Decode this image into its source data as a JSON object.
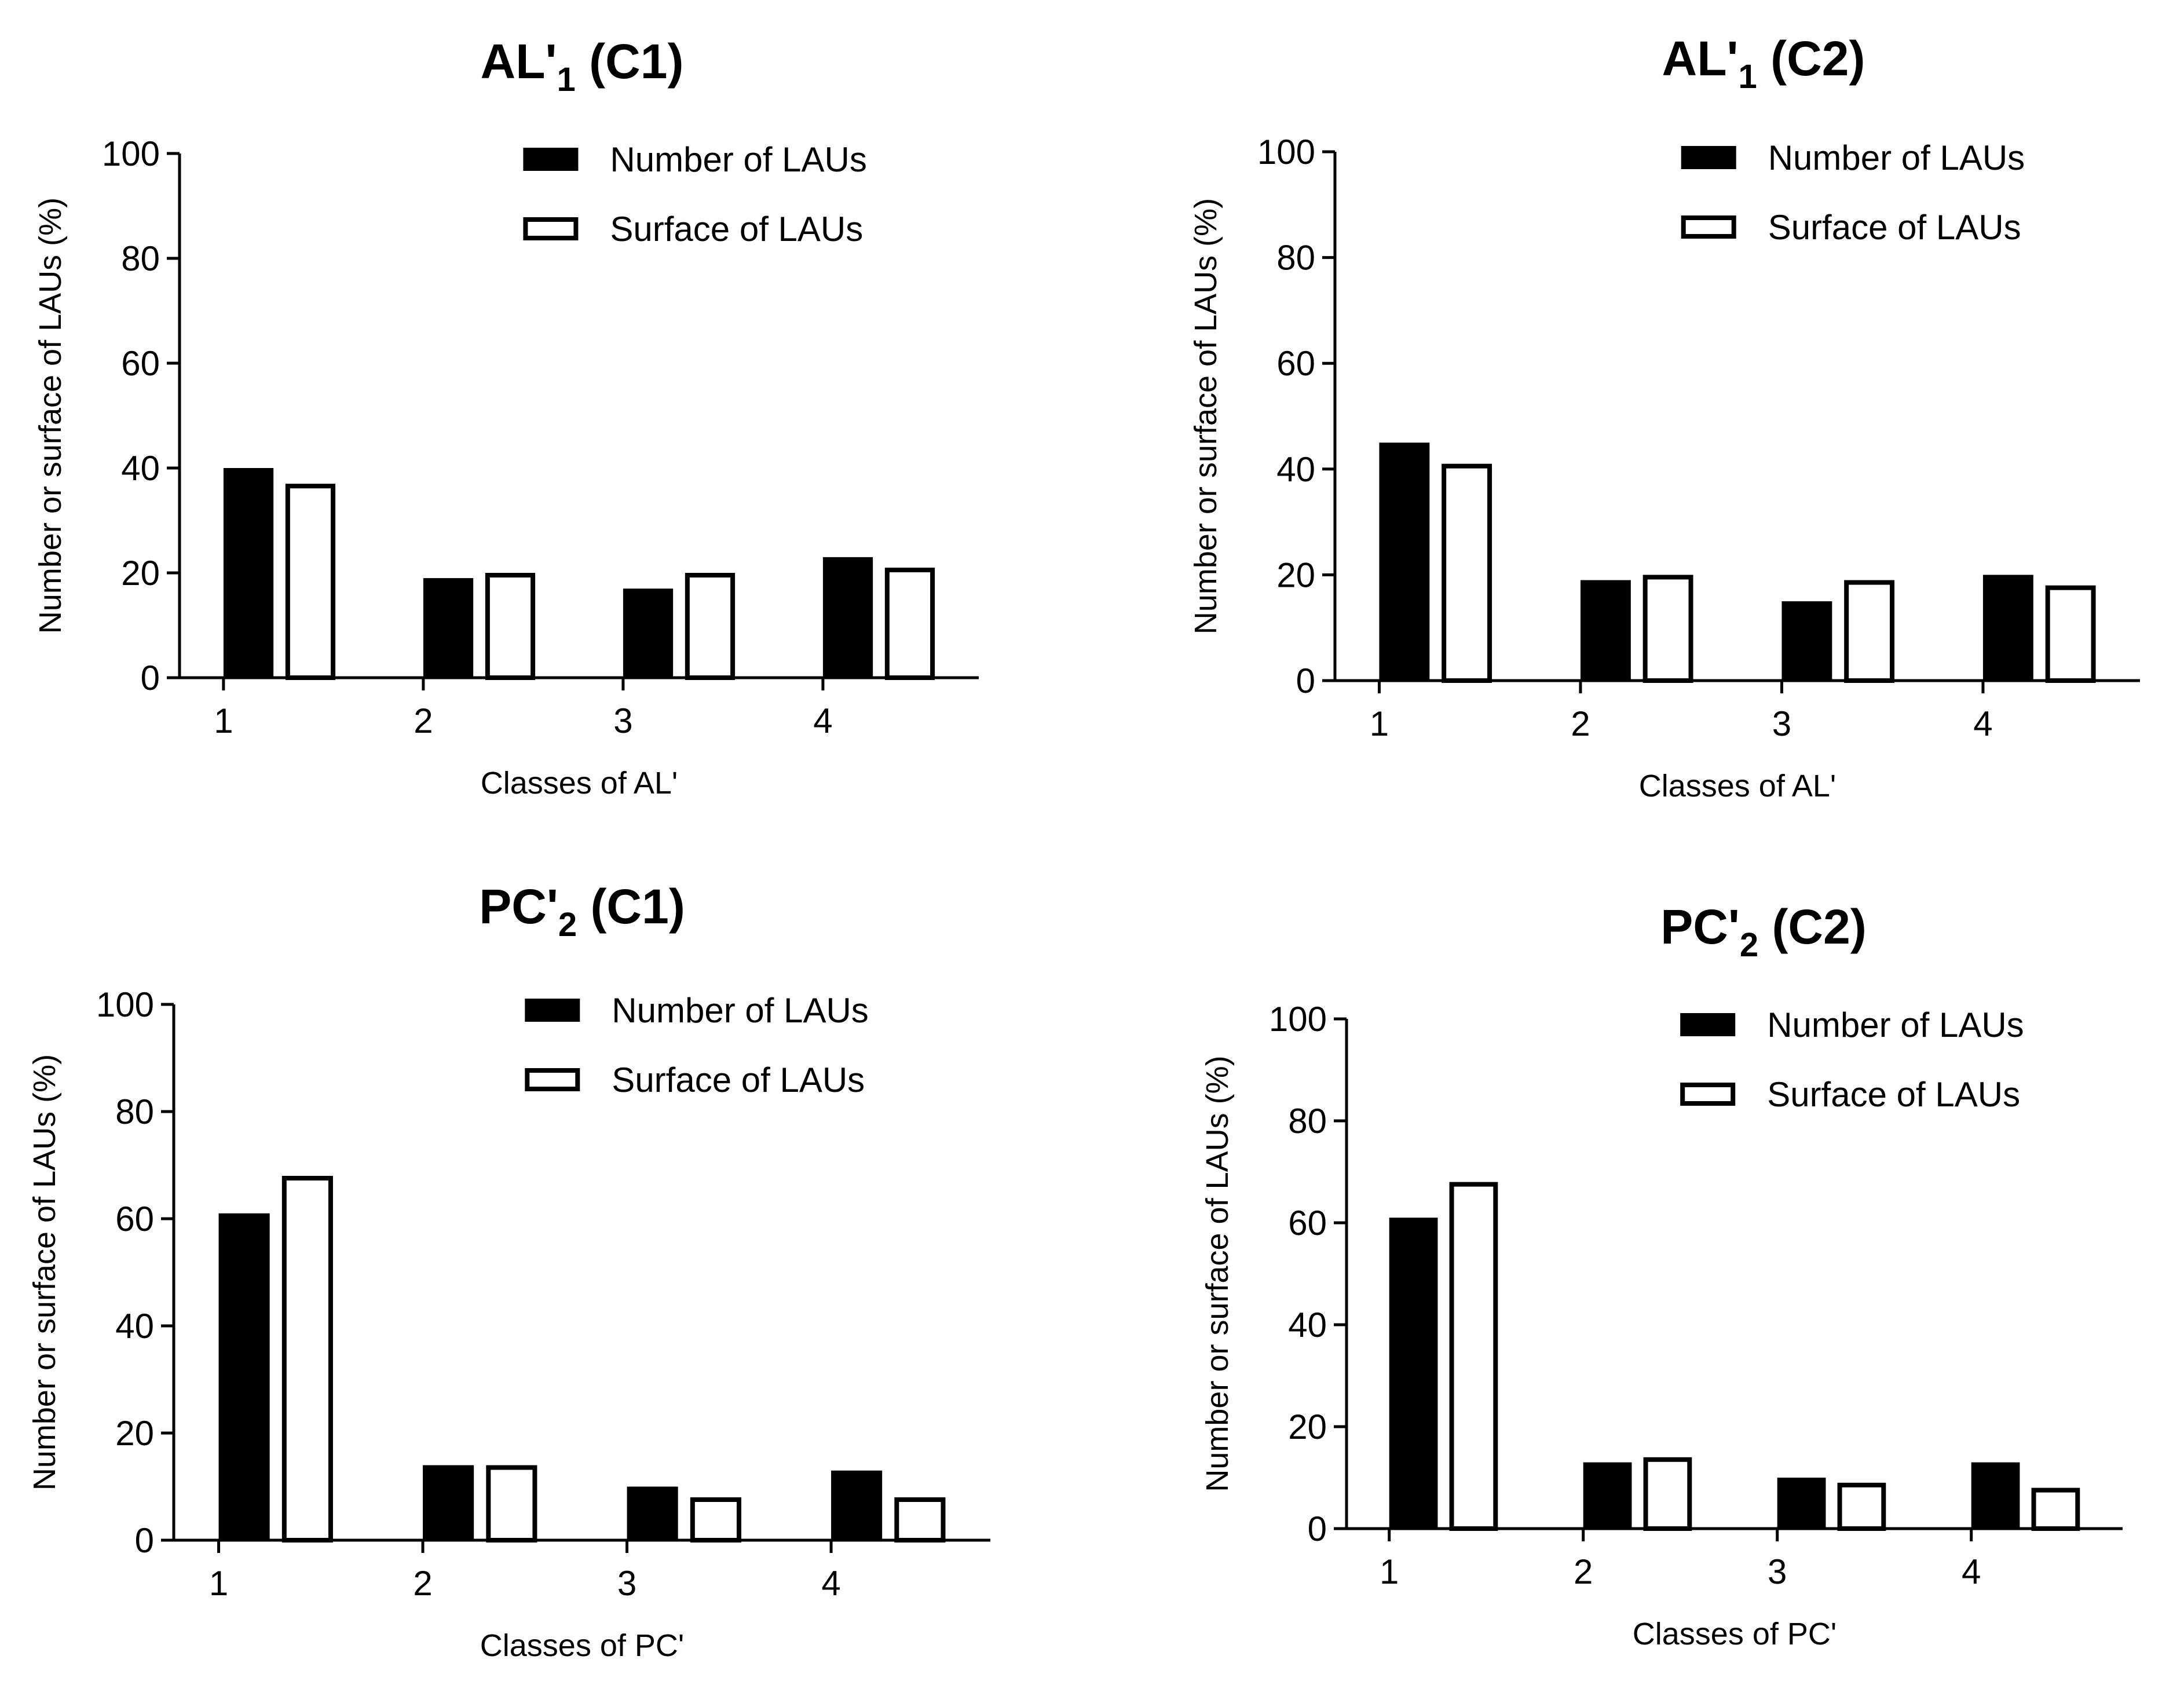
{
  "chart_data": [
    {
      "type": "bar",
      "title": "AL'",
      "title_sub": "1",
      "title_suffix": " (C1)",
      "categories": [
        "1",
        "2",
        "3",
        "4"
      ],
      "series": [
        {
          "name": "Number of LAUs",
          "values": [
            40,
            19,
            17,
            23
          ],
          "fill": "#000000"
        },
        {
          "name": "Surface of LAUs",
          "values": [
            37,
            20,
            20,
            21
          ],
          "fill": "#ffffff"
        }
      ],
      "xlabel": "Classes of AL'",
      "ylabel": "Number or surface of LAUs (%)",
      "ylim": [
        0,
        100
      ],
      "yticks": [
        0,
        20,
        40,
        60,
        80,
        100
      ],
      "legend": "top-right"
    },
    {
      "type": "bar",
      "title": "AL'",
      "title_sub": "1",
      "title_suffix": " (C2)",
      "categories": [
        "1",
        "2",
        "3",
        "4"
      ],
      "series": [
        {
          "name": "Number of LAUs",
          "values": [
            45,
            19,
            15,
            20
          ],
          "fill": "#000000"
        },
        {
          "name": "Surface of LAUs",
          "values": [
            41,
            20,
            19,
            18
          ],
          "fill": "#ffffff"
        }
      ],
      "xlabel": "Classes of AL'",
      "ylabel": "Number or surface of LAUs (%)",
      "ylim": [
        0,
        100
      ],
      "yticks": [
        0,
        20,
        40,
        60,
        80,
        100
      ],
      "legend": "top-right"
    },
    {
      "type": "bar",
      "title": "PC'",
      "title_sub": "2",
      "title_suffix": " (C1)",
      "categories": [
        "1",
        "2",
        "3",
        "4"
      ],
      "series": [
        {
          "name": "Number of LAUs",
          "values": [
            61,
            14,
            10,
            13
          ],
          "fill": "#000000"
        },
        {
          "name": "Surface of LAUs",
          "values": [
            68,
            14,
            8,
            8
          ],
          "fill": "#ffffff"
        }
      ],
      "xlabel": "Classes of PC'",
      "ylabel": "Number or surface of LAUs (%)",
      "ylim": [
        0,
        100
      ],
      "yticks": [
        0,
        20,
        40,
        60,
        80,
        100
      ],
      "legend": "top-right"
    },
    {
      "type": "bar",
      "title": "PC'",
      "title_sub": "2",
      "title_suffix": " (C2)",
      "categories": [
        "1",
        "2",
        "3",
        "4"
      ],
      "series": [
        {
          "name": "Number of LAUs",
          "values": [
            61,
            13,
            10,
            13
          ],
          "fill": "#000000"
        },
        {
          "name": "Surface of LAUs",
          "values": [
            68,
            14,
            9,
            8
          ],
          "fill": "#ffffff"
        }
      ],
      "xlabel": "Classes of PC'",
      "ylabel": "Number or surface of LAUs (%)",
      "ylim": [
        0,
        100
      ],
      "yticks": [
        0,
        20,
        40,
        60,
        80,
        100
      ],
      "legend": "top-right"
    }
  ]
}
